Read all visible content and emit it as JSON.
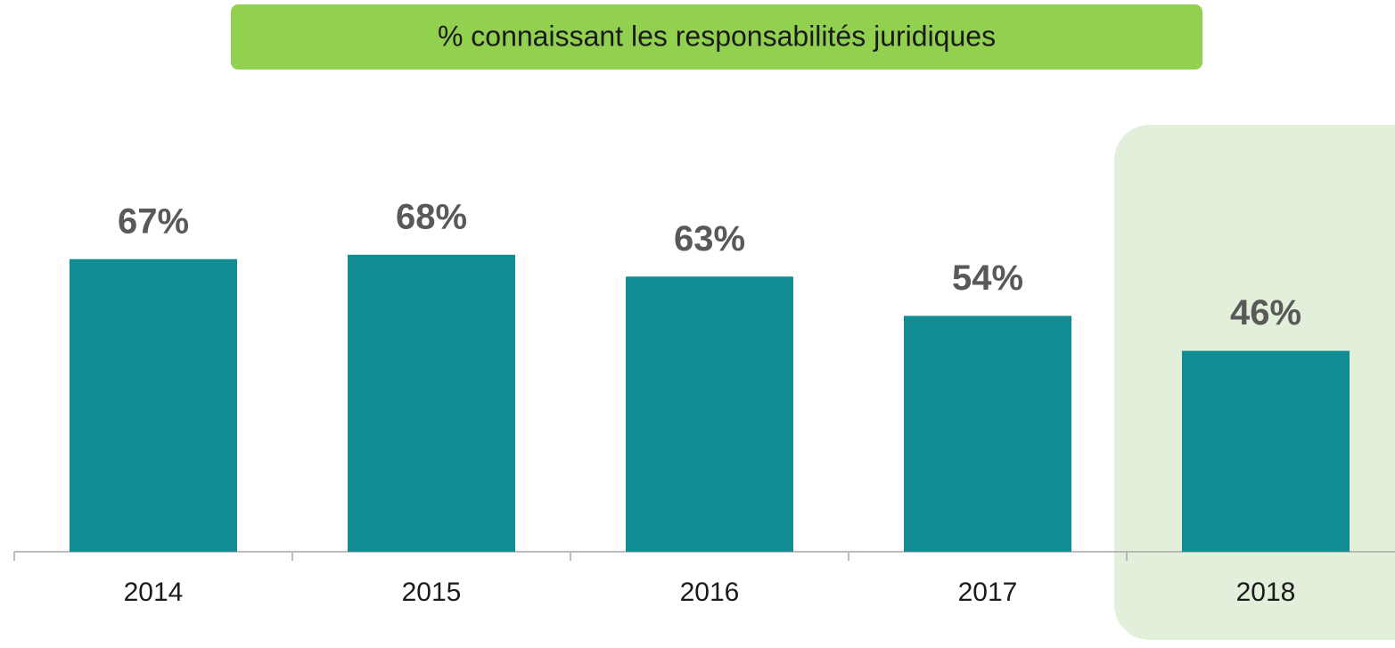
{
  "chart_data": {
    "type": "bar",
    "title": "% connaissant les responsabilités juridiques",
    "categories": [
      "2014",
      "2015",
      "2016",
      "2017",
      "2018"
    ],
    "values": [
      67,
      68,
      63,
      54,
      46
    ],
    "value_labels": [
      "67%",
      "68%",
      "63%",
      "54%",
      "46%"
    ],
    "color": "#118c93"
  }
}
